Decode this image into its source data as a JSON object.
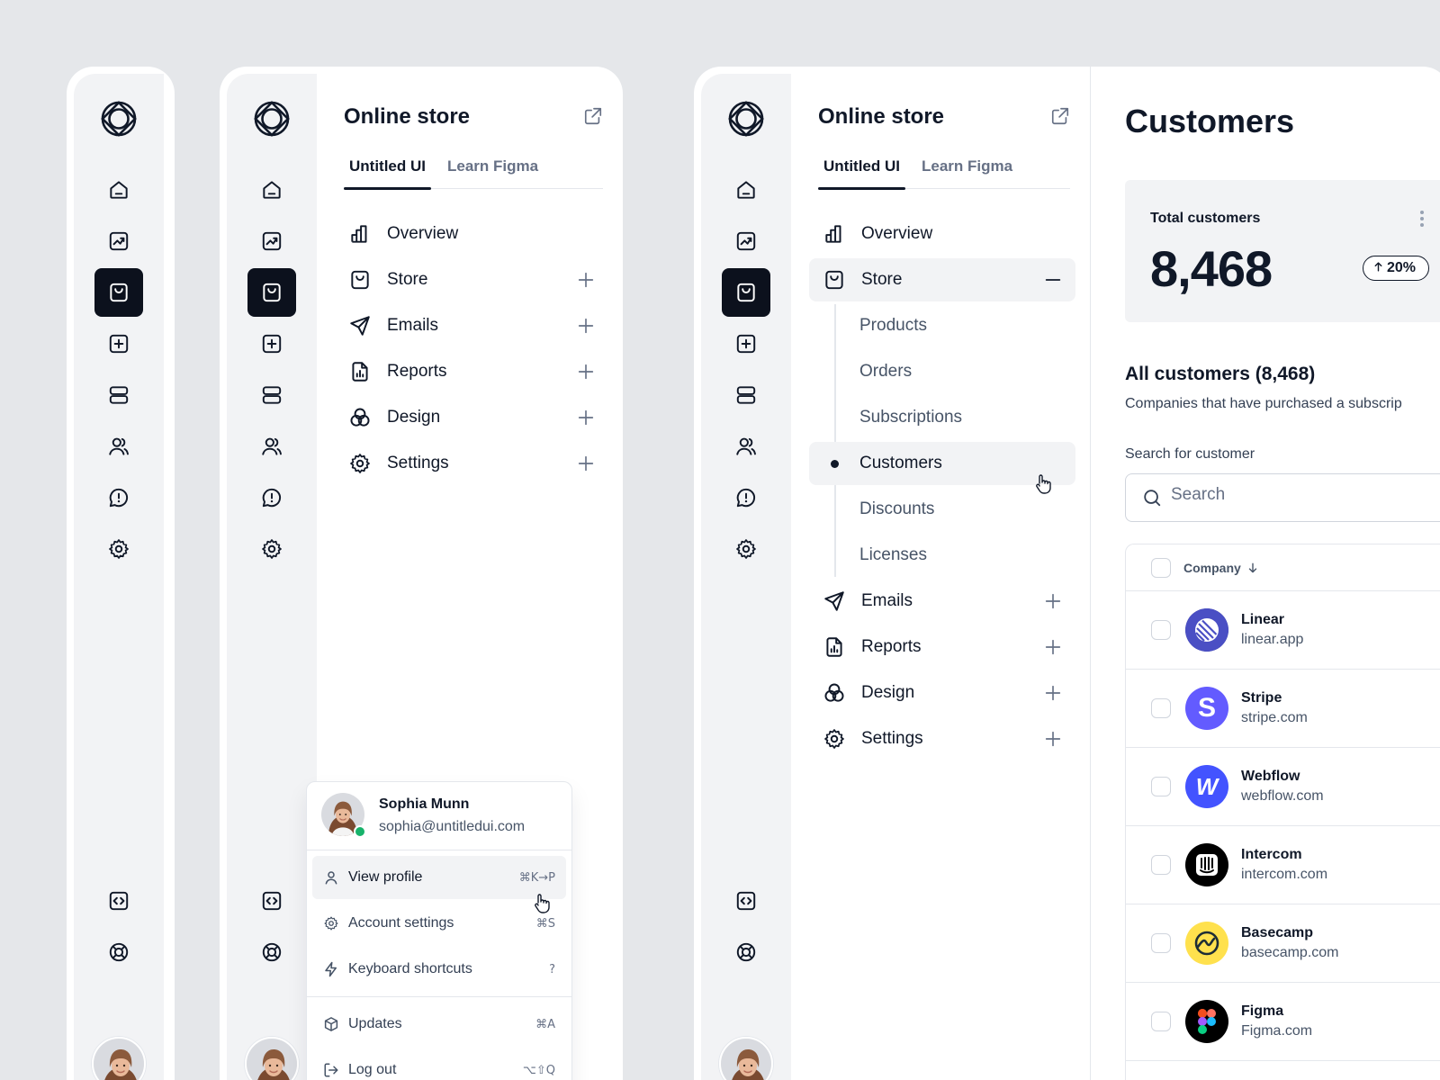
{
  "app": {
    "title": "Online store",
    "tabs": [
      {
        "label": "Untitled UI",
        "active": true
      },
      {
        "label": "Learn Figma",
        "active": false
      }
    ]
  },
  "rail": {
    "icons": [
      "home-icon",
      "trend-chart-icon",
      "shopping-bag-icon",
      "plus-square-icon",
      "layers-icon",
      "users-icon",
      "alert-message-icon",
      "gear-icon"
    ],
    "footer_icons": [
      "code-browser-icon",
      "life-buoy-icon"
    ],
    "active_index": 2
  },
  "nav": {
    "items": [
      {
        "label": "Overview",
        "icon": "bar-chart-icon"
      },
      {
        "label": "Store",
        "icon": "shopping-bag-icon"
      },
      {
        "label": "Emails",
        "icon": "send-icon"
      },
      {
        "label": "Reports",
        "icon": "file-chart-icon"
      },
      {
        "label": "Design",
        "icon": "circles-icon"
      },
      {
        "label": "Settings",
        "icon": "gear-icon"
      }
    ],
    "store_subitems": [
      "Products",
      "Orders",
      "Subscriptions",
      "Customers",
      "Discounts",
      "Licenses"
    ],
    "selected_subitem": "Customers"
  },
  "user_menu": {
    "name": "Sophia Munn",
    "email": "sophia@untitledui.com",
    "status": "online",
    "items": [
      {
        "label": "View profile",
        "shortcut": "⌘K→P",
        "icon": "user-icon"
      },
      {
        "label": "Account settings",
        "shortcut": "⌘S",
        "icon": "gear-icon"
      },
      {
        "label": "Keyboard shortcuts",
        "shortcut": "?",
        "icon": "lightning-icon"
      },
      {
        "label": "Updates",
        "shortcut": "⌘A",
        "icon": "cube-icon"
      },
      {
        "label": "Log out",
        "shortcut": "⌥⇧Q",
        "icon": "logout-icon"
      }
    ]
  },
  "customers": {
    "title": "Customers",
    "stat_label": "Total customers",
    "stat_value": "8,468",
    "stat_change": "20%",
    "stat_change_direction": "up",
    "list_title": "All customers (8,468)",
    "list_subtitle": "Companies that have purchased a subscrip",
    "search_label": "Search for customer",
    "search_placeholder": "Search",
    "column_company": "Company",
    "rows": [
      {
        "name": "Linear",
        "domain": "linear.app",
        "color": "#3b3f9e"
      },
      {
        "name": "Stripe",
        "domain": "stripe.com",
        "color": "#635bff"
      },
      {
        "name": "Webflow",
        "domain": "webflow.com",
        "color": "#4353ff"
      },
      {
        "name": "Intercom",
        "domain": "intercom.com",
        "color": "#000000"
      },
      {
        "name": "Basecamp",
        "domain": "basecamp.com",
        "color": "#ffe14d"
      },
      {
        "name": "Figma",
        "domain": "Figma.com",
        "color": "#000000"
      }
    ]
  },
  "colors": {
    "background": "#e5e7ea",
    "sidebar": "#f2f3f5",
    "active": "#0c111d",
    "text": "#101828",
    "muted": "#667085",
    "online": "#17b26a"
  }
}
